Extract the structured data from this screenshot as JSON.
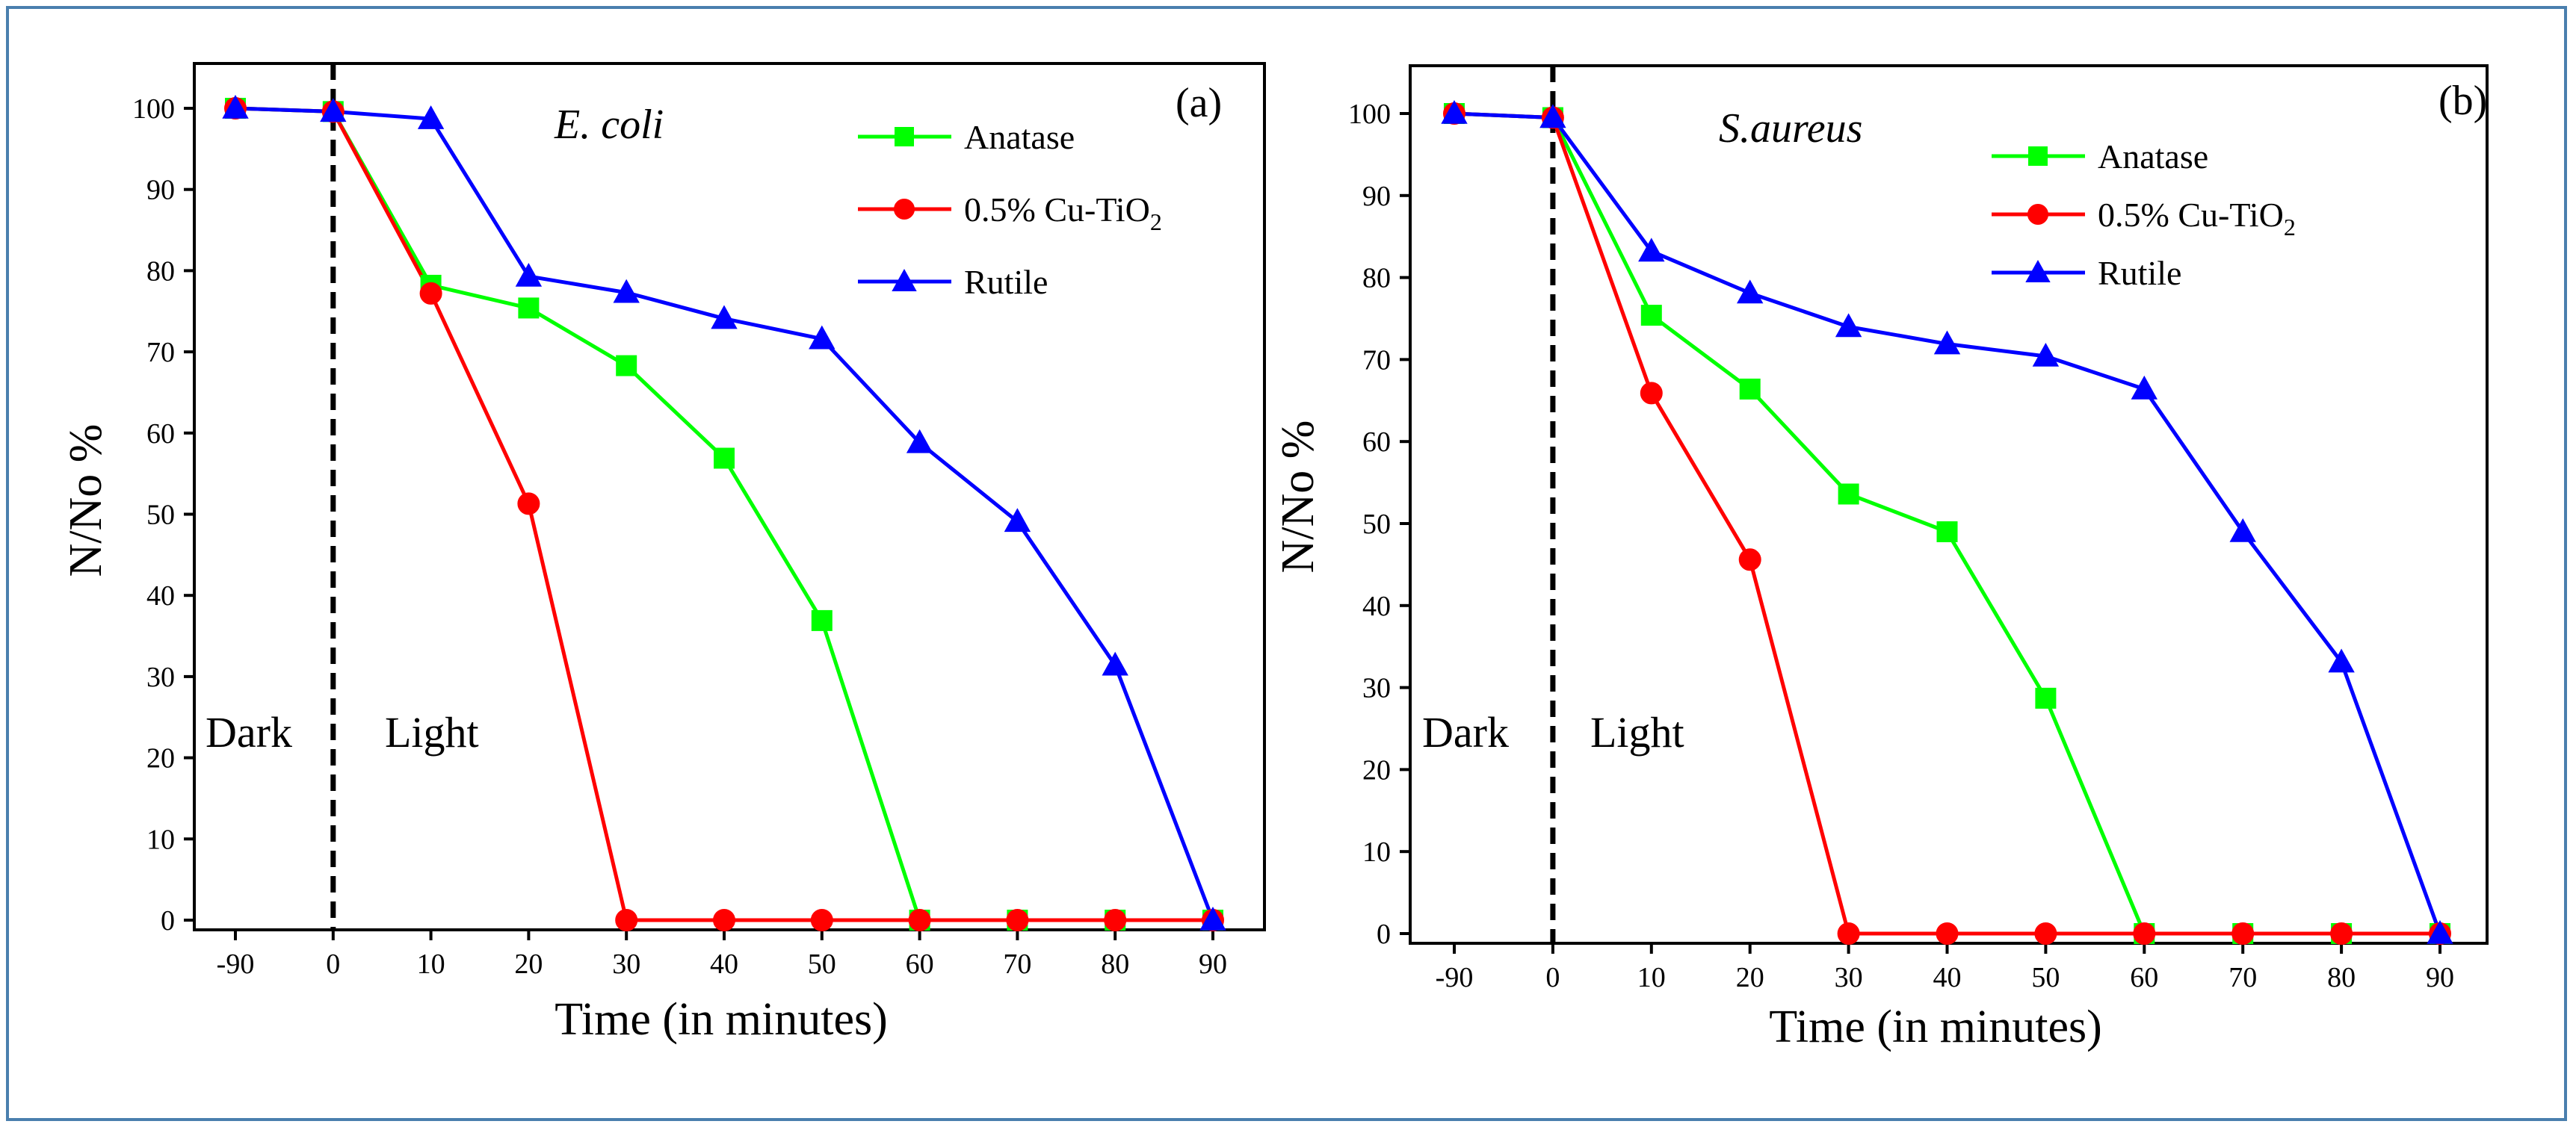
{
  "chart_data": [
    {
      "type": "line",
      "panel_label": "(a)",
      "organism": "E. coli",
      "xlabel": "Time (in minutes)",
      "ylabel": "N/No %",
      "x_categories": [
        "-90",
        "0",
        "10",
        "20",
        "30",
        "40",
        "50",
        "60",
        "70",
        "80",
        "90"
      ],
      "ylim": [
        0,
        100
      ],
      "yticks": [
        0,
        10,
        20,
        30,
        40,
        50,
        60,
        70,
        80,
        90,
        100
      ],
      "region_labels": {
        "dark": "Dark",
        "light": "Light"
      },
      "legend": {
        "position": "top-right"
      },
      "series": [
        {
          "name": "Anatase",
          "color": "#00ff00",
          "marker": "square",
          "values": [
            100,
            99.6,
            78.2,
            75.4,
            68.3,
            56.9,
            36.9,
            0,
            0,
            0,
            0
          ]
        },
        {
          "name": "0.5% Cu-TiO",
          "name_subscript": "2",
          "color": "#ff0000",
          "marker": "circle",
          "values": [
            100,
            99.6,
            77.2,
            51.3,
            0,
            0,
            0,
            0,
            0,
            0,
            0
          ]
        },
        {
          "name": "Rutile",
          "color": "#0000ff",
          "marker": "triangle",
          "values": [
            100,
            99.6,
            98.7,
            79.3,
            77.3,
            74.1,
            71.6,
            58.8,
            49.1,
            31.4,
            0
          ]
        }
      ]
    },
    {
      "type": "line",
      "panel_label": "(b)",
      "organism": "S.aureus",
      "xlabel": "Time (in minutes)",
      "ylabel": "N/No %",
      "x_categories": [
        "-90",
        "0",
        "10",
        "20",
        "30",
        "40",
        "50",
        "60",
        "70",
        "80",
        "90"
      ],
      "ylim": [
        0,
        100
      ],
      "yticks": [
        0,
        10,
        20,
        30,
        40,
        50,
        60,
        70,
        80,
        90,
        100
      ],
      "region_labels": {
        "dark": "Dark",
        "light": "Light"
      },
      "legend": {
        "position": "top-right"
      },
      "series": [
        {
          "name": "Anatase",
          "color": "#00ff00",
          "marker": "square",
          "values": [
            100,
            99.5,
            75.4,
            66.4,
            53.6,
            49.0,
            28.7,
            0,
            0,
            0,
            0
          ]
        },
        {
          "name": "0.5% Cu-TiO",
          "name_subscript": "2",
          "color": "#ff0000",
          "marker": "circle",
          "values": [
            100,
            99.5,
            65.9,
            45.6,
            0,
            0,
            0,
            0,
            0,
            0,
            0
          ]
        },
        {
          "name": "Rutile",
          "color": "#0000ff",
          "marker": "triangle",
          "values": [
            100,
            99.5,
            83.2,
            78.1,
            74.0,
            71.9,
            70.4,
            66.4,
            49.0,
            33.1,
            0
          ]
        }
      ]
    }
  ]
}
